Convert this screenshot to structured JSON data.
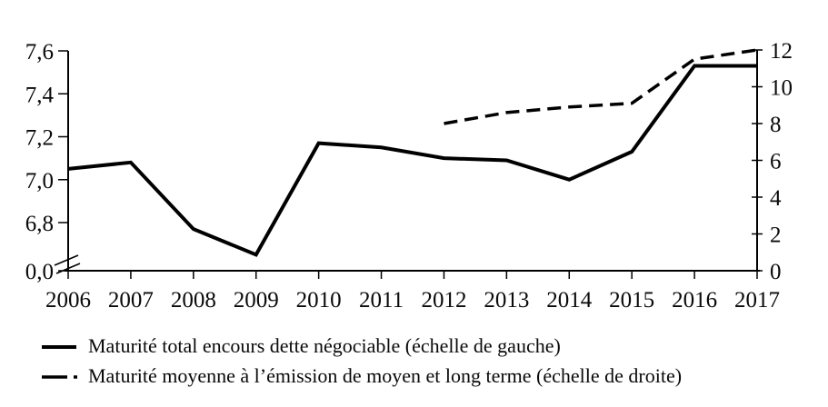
{
  "figure": {
    "background": "#ffffff",
    "line_color": "#000000",
    "text_color": "#0a0a0a"
  },
  "chart_data": {
    "type": "line",
    "title": "",
    "x": [
      2006,
      2007,
      2008,
      2009,
      2010,
      2011,
      2012,
      2013,
      2014,
      2015,
      2016,
      2017
    ],
    "x_tick_labels": [
      "2006",
      "2007",
      "2008",
      "2009",
      "2010",
      "2011",
      "2012",
      "2013",
      "2014",
      "2015",
      "2016",
      "2017"
    ],
    "series": [
      {
        "name": "Maturité total encours dette négociable (échelle de gauche)",
        "axis": "left",
        "style": "solid",
        "values": [
          7.05,
          7.08,
          6.77,
          6.65,
          7.17,
          7.15,
          7.1,
          7.09,
          7.0,
          7.13,
          7.53,
          7.53
        ]
      },
      {
        "name": "Maturité moyenne à l’émission de moyen et long terme (échelle de droite)",
        "axis": "right",
        "style": "dashed",
        "values": [
          null,
          null,
          null,
          null,
          null,
          null,
          8.0,
          8.6,
          8.9,
          9.1,
          11.5,
          12.0
        ]
      }
    ],
    "left_axis": {
      "tick_labels": [
        "0,0",
        "6,8",
        "7,0",
        "7,2",
        "7,4",
        "7,6"
      ],
      "tick_values": [
        0,
        6.8,
        7.0,
        7.2,
        7.4,
        7.6
      ],
      "range_top": 7.6,
      "range_bottom": 6.8,
      "has_break": true
    },
    "right_axis": {
      "tick_labels": [
        "0",
        "2",
        "4",
        "6",
        "8",
        "10",
        "12"
      ],
      "tick_values": [
        0,
        2,
        4,
        6,
        8,
        10,
        12
      ],
      "range": [
        0,
        12
      ]
    },
    "grid": false,
    "legend_position": "bottom-left"
  },
  "legend": {
    "items": [
      {
        "marker": "solid-line",
        "label_bind": "series 0"
      },
      {
        "marker": "dash-dot-line",
        "label_bind": "series 1"
      }
    ]
  }
}
